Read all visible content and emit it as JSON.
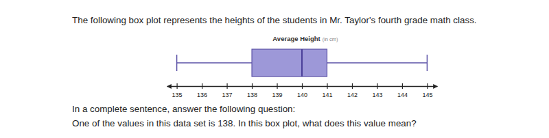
{
  "chart_data": {
    "type": "box",
    "title": "Average Height",
    "subtitle": "(in cm)",
    "annotations": [
      "The following box plot represents the heights of the students in Mr. Taylor's fourth grade math class.",
      "In a complete sentence, answer the following question:",
      "One of the values in this data set is 138. In this box plot, what does this value mean?"
    ],
    "stats": {
      "min": 135,
      "q1": 138,
      "median": 140,
      "q3": 141,
      "max": 145
    },
    "color": "#9d98d8",
    "xlim": [
      134.6,
      145.4
    ],
    "xticks": [
      135,
      136,
      137,
      138,
      139,
      140,
      141,
      142,
      143,
      144,
      145
    ],
    "grid": false
  }
}
